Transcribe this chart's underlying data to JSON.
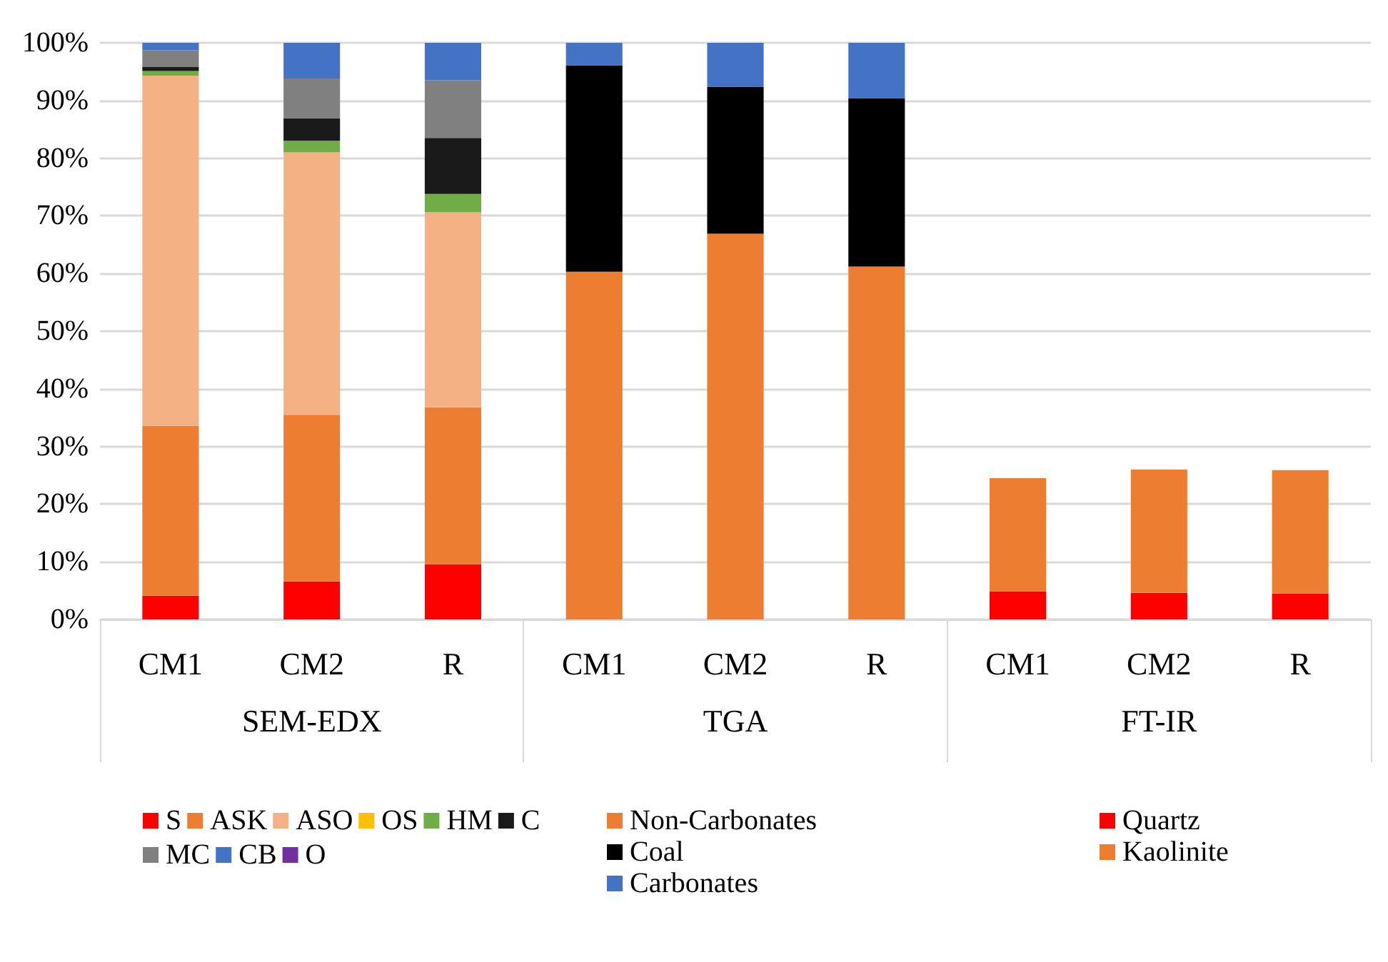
{
  "chart_data": {
    "type": "bar",
    "stacked": true,
    "categories": [
      "CM1",
      "CM2",
      "R",
      "CM1",
      "CM2",
      "R",
      "CM1",
      "CM2",
      "R"
    ],
    "annotations": [
      "SEM-EDX",
      "TGA",
      "FT-IR"
    ],
    "series": [
      {
        "name": "S",
        "color": "#ff0000",
        "values": [
          4.1,
          6.6,
          9.6,
          null,
          null,
          null,
          null,
          null,
          null
        ]
      },
      {
        "name": "ASK",
        "color": "#ed7d31",
        "values": [
          29.5,
          28.9,
          27.2,
          null,
          null,
          null,
          null,
          null,
          null
        ]
      },
      {
        "name": "ASO",
        "color": "#f4b183",
        "values": [
          60.7,
          45.5,
          33.8,
          null,
          null,
          null,
          null,
          null,
          null
        ]
      },
      {
        "name": "OS",
        "color": "#ffc000",
        "values": [
          0,
          0,
          0,
          null,
          null,
          null,
          null,
          null,
          null
        ]
      },
      {
        "name": "HM",
        "color": "#70ad47",
        "values": [
          0.8,
          2.0,
          3.2,
          null,
          null,
          null,
          null,
          null,
          null
        ]
      },
      {
        "name": "C",
        "color": "#1a1a1a",
        "values": [
          0.7,
          3.9,
          9.7,
          null,
          null,
          null,
          null,
          null,
          null
        ]
      },
      {
        "name": "MC",
        "color": "#808080",
        "values": [
          2.9,
          6.9,
          10.0,
          null,
          null,
          null,
          null,
          null,
          null
        ]
      },
      {
        "name": "CB",
        "color": "#4472c4",
        "values": [
          1.3,
          6.2,
          6.5,
          null,
          null,
          null,
          null,
          null,
          null
        ]
      },
      {
        "name": "O",
        "color": "#7030a0",
        "values": [
          0,
          0,
          0,
          null,
          null,
          null,
          null,
          null,
          null
        ]
      },
      {
        "name": "Non-Carbonates",
        "color": "#ed7d31",
        "values": [
          null,
          null,
          null,
          60.3,
          66.9,
          61.2,
          null,
          null,
          null
        ]
      },
      {
        "name": "Coal",
        "color": "#000000",
        "values": [
          null,
          null,
          null,
          35.8,
          25.5,
          29.2,
          null,
          null,
          null
        ]
      },
      {
        "name": "Carbonates",
        "color": "#4472c4",
        "values": [
          null,
          null,
          null,
          3.9,
          7.6,
          9.6,
          null,
          null,
          null
        ]
      },
      {
        "name": "Quartz",
        "color": "#ff0000",
        "values": [
          null,
          null,
          null,
          null,
          null,
          null,
          4.9,
          4.6,
          4.5
        ]
      },
      {
        "name": "Kaolinite",
        "color": "#ed7d31",
        "values": [
          null,
          null,
          null,
          null,
          null,
          null,
          19.6,
          21.4,
          21.4
        ]
      }
    ],
    "ylim": [
      0,
      100
    ],
    "yticks": [
      {
        "value": 0,
        "label": "0%"
      },
      {
        "value": 10,
        "label": "10%"
      },
      {
        "value": 20,
        "label": "20%"
      },
      {
        "value": 30,
        "label": "30%"
      },
      {
        "value": 40,
        "label": "40%"
      },
      {
        "value": 50,
        "label": "50%"
      },
      {
        "value": 60,
        "label": "60%"
      },
      {
        "value": 70,
        "label": "70%"
      },
      {
        "value": 80,
        "label": "80%"
      },
      {
        "value": 90,
        "label": "90%"
      },
      {
        "value": 100,
        "label": "100%"
      }
    ],
    "grid": "y",
    "legend": "bottom"
  }
}
